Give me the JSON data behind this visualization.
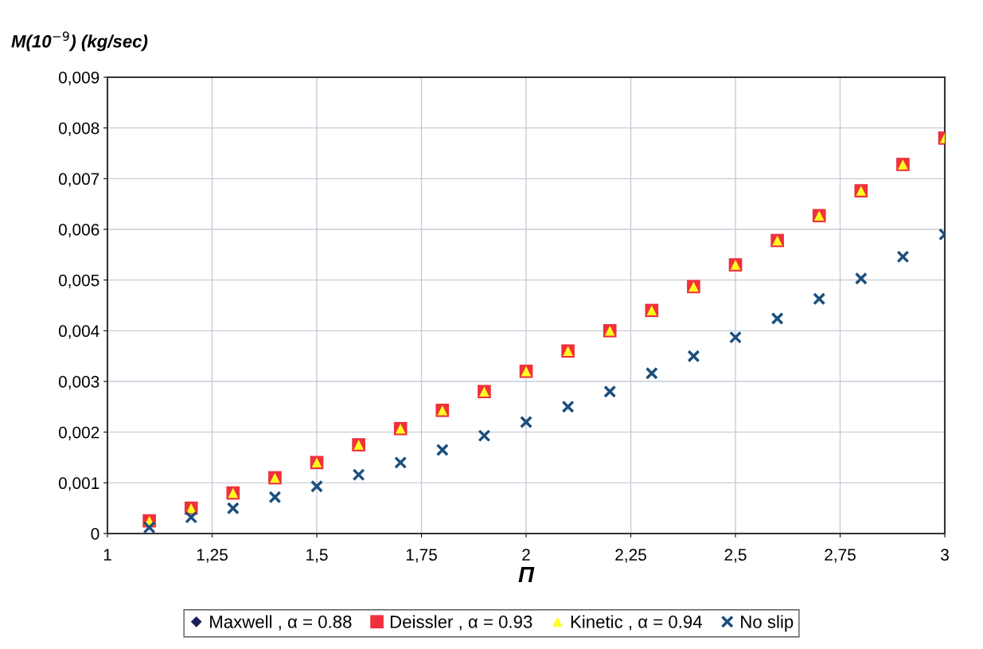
{
  "chart_data": {
    "type": "scatter",
    "xlabel": "Π",
    "ylabel": "M(10$^{−9}$) (kg/sec)",
    "x": [
      1.1,
      1.2,
      1.3,
      1.4,
      1.5,
      1.6,
      1.7,
      1.8,
      1.9,
      2.0,
      2.1,
      2.2,
      2.3,
      2.4,
      2.5,
      2.6,
      2.7,
      2.8,
      2.9,
      3.0
    ],
    "series": [
      {
        "name": "Maxwell , α = 0.88",
        "color": "#1a1f5c",
        "marker": "diamond",
        "values": [
          null,
          null,
          null,
          null,
          null,
          null,
          null,
          null,
          null,
          null,
          null,
          null,
          null,
          null,
          null,
          null,
          null,
          null,
          null,
          null
        ]
      },
      {
        "name": "Deissler , α = 0.93",
        "color": "#f0303c",
        "marker": "square",
        "values": [
          0.00025,
          0.0005,
          0.0008,
          0.0011,
          0.0014,
          0.00175,
          0.00207,
          0.00243,
          0.0028,
          0.0032,
          0.0036,
          0.004,
          0.0044,
          0.00487,
          0.0053,
          0.00578,
          0.00627,
          0.00676,
          0.00728,
          0.0078
        ]
      },
      {
        "name": "Kinetic , α = 0.94",
        "color": "#ffff20",
        "marker": "triangle",
        "values": [
          0.00025,
          0.0005,
          0.0008,
          0.0011,
          0.0014,
          0.00175,
          0.00207,
          0.00243,
          0.0028,
          0.0032,
          0.0036,
          0.004,
          0.0044,
          0.00487,
          0.0053,
          0.00578,
          0.00627,
          0.00676,
          0.00728,
          0.0078
        ]
      },
      {
        "name": "No slip",
        "color": "#1b4f7e",
        "marker": "cross",
        "values": [
          0.00012,
          0.00032,
          0.0005,
          0.00072,
          0.00093,
          0.00116,
          0.0014,
          0.00165,
          0.00193,
          0.0022,
          0.0025,
          0.0028,
          0.00316,
          0.0035,
          0.00387,
          0.00424,
          0.00463,
          0.00503,
          0.00546,
          0.0059
        ]
      }
    ],
    "xlim": [
      1,
      3
    ],
    "xticks": [
      1,
      {
        "value": 1.25,
        "label": "1,25"
      },
      {
        "value": 1.5,
        "label": "1,5"
      },
      {
        "value": 1.75,
        "label": "1,75"
      },
      2,
      {
        "value": 2.25,
        "label": "2,25"
      },
      {
        "value": 2.5,
        "label": "2,5"
      },
      {
        "value": 2.75,
        "label": "2,75"
      },
      3
    ],
    "ylim": [
      0,
      0.009
    ],
    "yticks": [
      0,
      {
        "value": 0.001,
        "label": "0,001"
      },
      {
        "value": 0.002,
        "label": "0,002"
      },
      {
        "value": 0.003,
        "label": "0,003"
      },
      {
        "value": 0.004,
        "label": "0,004"
      },
      {
        "value": 0.005,
        "label": "0,005"
      },
      {
        "value": 0.006,
        "label": "0,006"
      },
      {
        "value": 0.007,
        "label": "0,007"
      },
      {
        "value": 0.008,
        "label": "0,008"
      },
      {
        "value": 0.009,
        "label": "0,009"
      }
    ],
    "grid": true,
    "legend": "bottom"
  }
}
